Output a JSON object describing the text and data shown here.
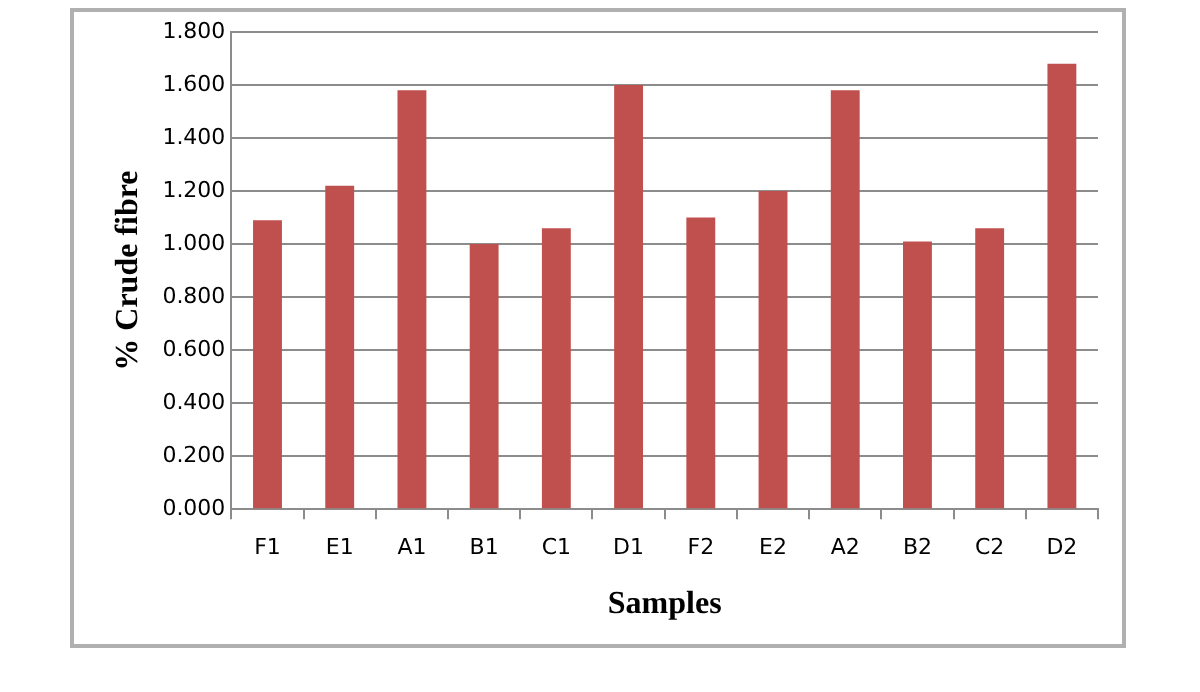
{
  "chart_data": {
    "type": "bar",
    "xlabel": "Samples",
    "ylabel": "% Crude fibre",
    "categories": [
      "F1",
      "E1",
      "A1",
      "B1",
      "C1",
      "D1",
      "F2",
      "E2",
      "A2",
      "B2",
      "C2",
      "D2"
    ],
    "values": [
      1.09,
      1.22,
      1.58,
      1.0,
      1.06,
      1.6,
      1.1,
      1.2,
      1.58,
      1.01,
      1.06,
      1.68
    ],
    "color": "#c0504d",
    "ylim": [
      0,
      1.8
    ],
    "yticks": [
      {
        "value": 0,
        "label": "0.000"
      },
      {
        "value": 0.2,
        "label": "0.200"
      },
      {
        "value": 0.4,
        "label": "0.400"
      },
      {
        "value": 0.6,
        "label": "0.600"
      },
      {
        "value": 0.8,
        "label": "0.800"
      },
      {
        "value": 1,
        "label": "1.000"
      },
      {
        "value": 1.2,
        "label": "1.200"
      },
      {
        "value": 1.4,
        "label": "1.400"
      },
      {
        "value": 1.6,
        "label": "1.600"
      },
      {
        "value": 1.8,
        "label": "1.800"
      }
    ],
    "grid": "y",
    "legend": false
  }
}
